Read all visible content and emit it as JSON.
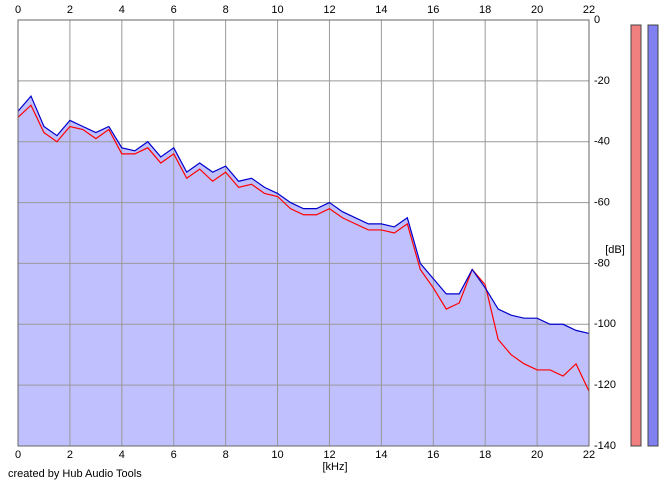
{
  "chart_data": {
    "type": "line",
    "x": [
      0,
      0.5,
      1,
      1.5,
      2,
      2.5,
      3,
      3.5,
      4,
      4.5,
      5,
      5.5,
      6,
      6.5,
      7,
      7.5,
      8,
      8.5,
      9,
      9.5,
      10,
      10.5,
      11,
      11.5,
      12,
      12.5,
      13,
      13.5,
      14,
      14.5,
      15,
      15.5,
      16,
      16.5,
      17,
      17.5,
      18,
      18.5,
      19,
      19.5,
      20,
      20.5,
      21,
      21.5,
      22
    ],
    "series": [
      {
        "color": "#ff0000",
        "values": [
          -32,
          -28,
          -37,
          -40,
          -35,
          -36,
          -39,
          -36,
          -44,
          -44,
          -42,
          -47,
          -44,
          -52,
          -49,
          -53,
          -50,
          -55,
          -54,
          -57,
          -58,
          -62,
          -64,
          -64,
          -62,
          -65,
          -67,
          -69,
          -69,
          -70,
          -67,
          -82,
          -88,
          -95,
          -93,
          -82,
          -87,
          -105,
          -110,
          -113,
          -115,
          -115,
          -117,
          -113,
          -122
        ]
      },
      {
        "color": "#0000cc",
        "values": [
          -30,
          -25,
          -35,
          -38,
          -33,
          -35,
          -37,
          -35,
          -42,
          -43,
          -40,
          -45,
          -42,
          -50,
          -47,
          -50,
          -48,
          -53,
          -52,
          -55,
          -57,
          -60,
          -62,
          -62,
          -60,
          -63,
          -65,
          -67,
          -67,
          -68,
          -65,
          -80,
          -85,
          -90,
          -90,
          -82,
          -88,
          -95,
          -97,
          -98,
          -98,
          -100,
          -100,
          -102,
          -103
        ]
      }
    ],
    "xlim": [
      0,
      22
    ],
    "xticks": [
      0,
      2,
      4,
      6,
      8,
      10,
      12,
      14,
      16,
      18,
      20,
      22
    ],
    "ylim": [
      -140,
      0
    ],
    "yticks": [
      0,
      -20,
      -40,
      -60,
      -80,
      -100,
      -120,
      -140
    ],
    "xlabel": "[kHz]",
    "ylabel": "[dB]",
    "footer": "created by Hub Audio Tools",
    "fill_color": "#c0c0ff",
    "grid": true
  }
}
